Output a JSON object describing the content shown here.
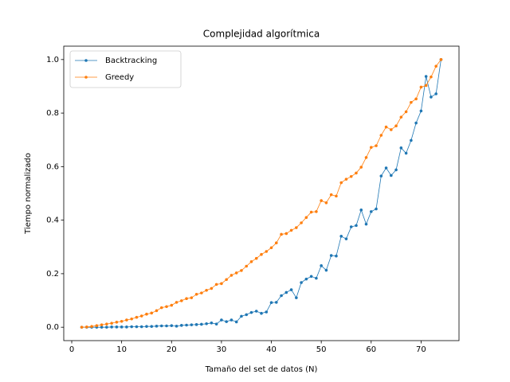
{
  "chart_data": {
    "type": "line",
    "title": "Complejidad algorítmica",
    "x_label": "Tamaño del set de datos (N)",
    "y_label": "Tiempo normalizado",
    "x": [
      2,
      3,
      4,
      5,
      6,
      7,
      8,
      9,
      10,
      11,
      12,
      13,
      14,
      15,
      16,
      17,
      18,
      19,
      20,
      21,
      22,
      23,
      24,
      25,
      26,
      27,
      28,
      29,
      30,
      31,
      32,
      33,
      34,
      35,
      36,
      37,
      38,
      39,
      40,
      41,
      42,
      43,
      44,
      45,
      46,
      47,
      48,
      49,
      50,
      51,
      52,
      53,
      54,
      55,
      56,
      57,
      58,
      59,
      60,
      61,
      62,
      63,
      64,
      65,
      66,
      67,
      68,
      69,
      70,
      71,
      72,
      73,
      74
    ],
    "series": [
      {
        "name": "Backtracking",
        "color": "#1f77b4",
        "values": [
          0,
          0,
          0,
          0,
          0,
          0,
          0.001,
          0.001,
          0.001,
          0.001,
          0.002,
          0.002,
          0.002,
          0.003,
          0.003,
          0.004,
          0.005,
          0.005,
          0.006,
          0.004,
          0.007,
          0.008,
          0.009,
          0.01,
          0.011,
          0.013,
          0.016,
          0.012,
          0.027,
          0.021,
          0.027,
          0.02,
          0.041,
          0.047,
          0.055,
          0.06,
          0.052,
          0.057,
          0.092,
          0.093,
          0.118,
          0.13,
          0.14,
          0.11,
          0.167,
          0.18,
          0.19,
          0.183,
          0.23,
          0.213,
          0.268,
          0.266,
          0.34,
          0.33,
          0.375,
          0.38,
          0.438,
          0.385,
          0.432,
          0.442,
          0.565,
          0.595,
          0.567,
          0.588,
          0.67,
          0.65,
          0.698,
          0.763,
          0.808,
          0.937,
          0.86,
          0.872,
          1.0
        ]
      },
      {
        "name": "Greedy",
        "color": "#ff7f0e",
        "values": [
          0,
          0.001,
          0.003,
          0.006,
          0.009,
          0.012,
          0.015,
          0.019,
          0.022,
          0.027,
          0.031,
          0.037,
          0.042,
          0.049,
          0.053,
          0.062,
          0.073,
          0.077,
          0.082,
          0.093,
          0.099,
          0.107,
          0.11,
          0.123,
          0.128,
          0.138,
          0.145,
          0.16,
          0.163,
          0.178,
          0.194,
          0.203,
          0.212,
          0.228,
          0.245,
          0.257,
          0.272,
          0.283,
          0.297,
          0.315,
          0.347,
          0.35,
          0.362,
          0.372,
          0.39,
          0.41,
          0.43,
          0.432,
          0.473,
          0.465,
          0.495,
          0.49,
          0.54,
          0.553,
          0.563,
          0.576,
          0.598,
          0.634,
          0.672,
          0.678,
          0.717,
          0.748,
          0.738,
          0.752,
          0.785,
          0.805,
          0.84,
          0.853,
          0.897,
          0.903,
          0.935,
          0.975,
          1.0
        ]
      }
    ],
    "xlim": [
      -1.6,
      77.6
    ],
    "ylim": [
      -0.05,
      1.05
    ],
    "xticks": [
      0,
      10,
      20,
      30,
      40,
      50,
      60,
      70
    ],
    "yticks": [
      {
        "value": 0,
        "label": "0.0"
      },
      0.2,
      0.4,
      0.6,
      0.8,
      {
        "value": 1,
        "label": "1.0"
      }
    ],
    "grid": false,
    "legend": "upper left"
  }
}
